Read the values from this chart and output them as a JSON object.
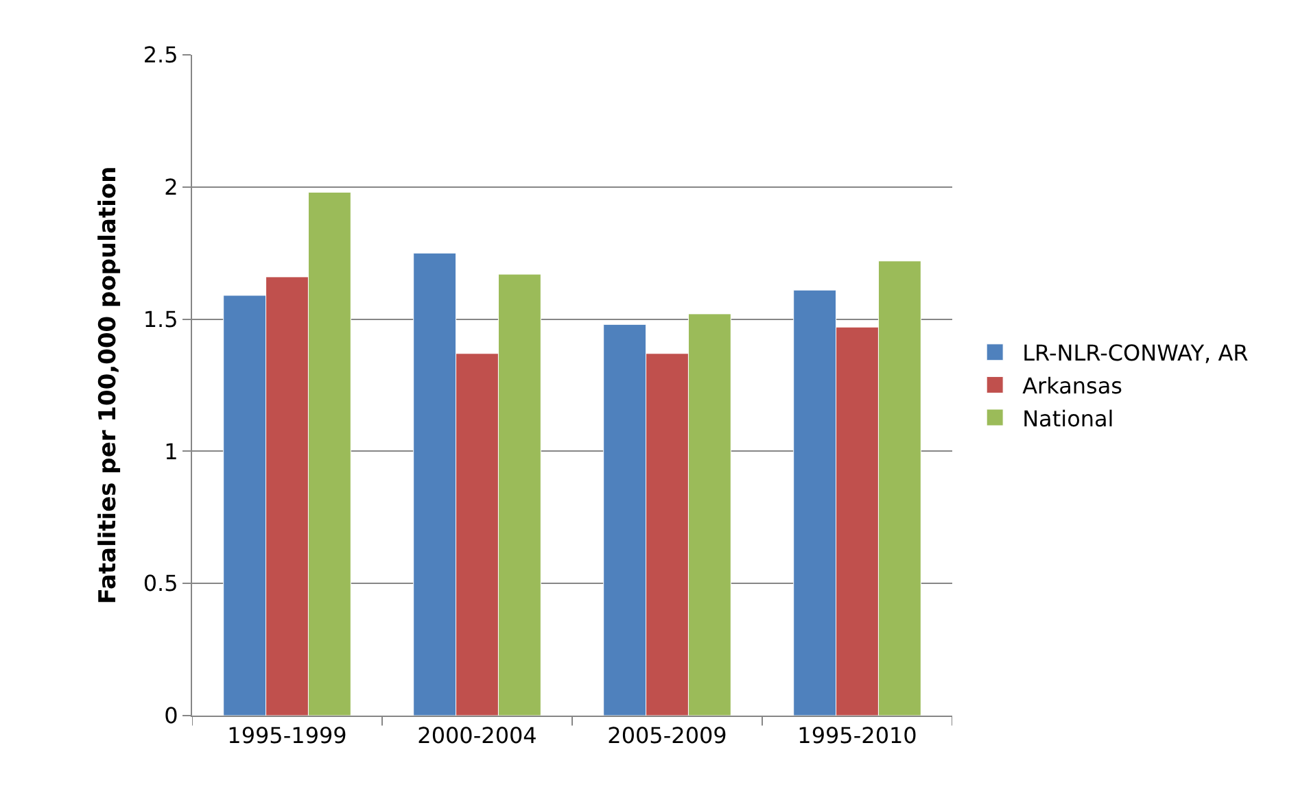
{
  "chart_data": {
    "type": "bar",
    "ylabel": "Fatalities per 100,000 population",
    "categories": [
      "1995-1999",
      "2000-2004",
      "2005-2009",
      "1995-2010"
    ],
    "series": [
      {
        "name": "LR-NLR-CONWAY, AR",
        "color": "#4f81bd",
        "values": [
          1.59,
          1.75,
          1.48,
          1.61
        ]
      },
      {
        "name": "Arkansas",
        "color": "#c0504d",
        "values": [
          1.66,
          1.37,
          1.37,
          1.47
        ]
      },
      {
        "name": "National",
        "color": "#9bbb59",
        "values": [
          1.98,
          1.67,
          1.52,
          1.72
        ]
      }
    ],
    "ylim": [
      0,
      2.5
    ],
    "yticks": [
      0,
      0.5,
      1,
      1.5,
      2,
      2.5
    ],
    "grid": "y",
    "legend": "right"
  }
}
